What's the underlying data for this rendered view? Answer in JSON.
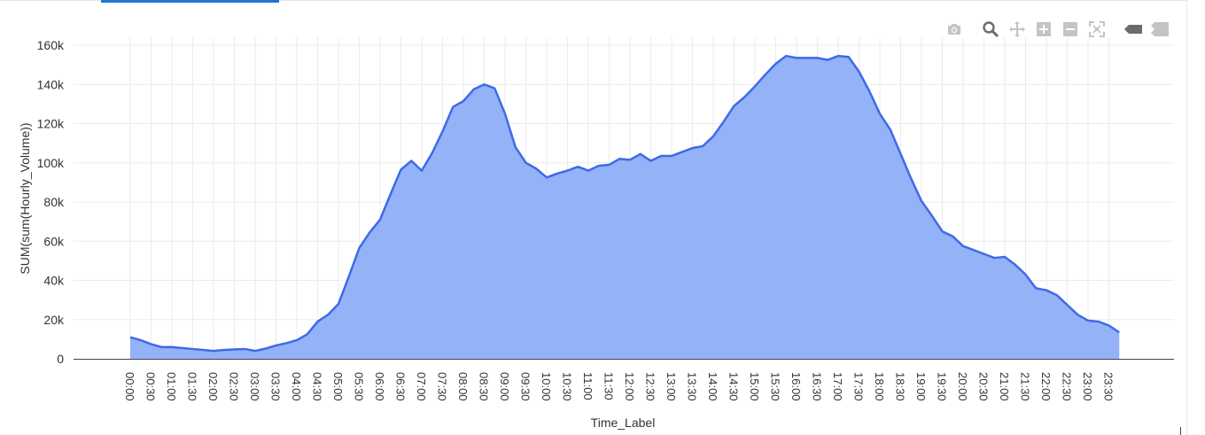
{
  "toolbar": {
    "icons": [
      "camera-icon",
      "zoom-icon",
      "pan-icon",
      "zoom-in-icon",
      "zoom-out-icon",
      "autoscale-icon",
      "hover-closest-icon",
      "hover-compare-icon"
    ]
  },
  "colors": {
    "fill": "#94b2f8",
    "line": "#3f6ae8",
    "grid": "#ebebeb",
    "axis": "#444444",
    "text": "#333333",
    "icon": "#c4c4c4",
    "icon_dark": "#6b6b6b",
    "tab_accent": "#1f77d0"
  },
  "chart_data": {
    "type": "area",
    "xlabel": "Time_Label",
    "ylabel": "SUM(sum(Hourly_Volume))",
    "ylim": [
      0,
      162000
    ],
    "yticks": [
      0,
      20000,
      40000,
      60000,
      80000,
      100000,
      120000,
      140000,
      160000
    ],
    "ytick_labels": [
      "0",
      "20k",
      "40k",
      "60k",
      "80k",
      "100k",
      "120k",
      "140k",
      "160k"
    ],
    "x_tick_labels": [
      "00:00",
      "00:30",
      "01:00",
      "01:30",
      "02:00",
      "02:30",
      "03:00",
      "03:30",
      "04:00",
      "04:30",
      "05:00",
      "05:30",
      "06:00",
      "06:30",
      "07:00",
      "07:30",
      "08:00",
      "08:30",
      "09:00",
      "09:30",
      "10:00",
      "10:30",
      "11:00",
      "11:30",
      "12:00",
      "12:30",
      "13:00",
      "13:30",
      "14:00",
      "14:30",
      "15:00",
      "15:30",
      "16:00",
      "16:30",
      "17:00",
      "17:30",
      "18:00",
      "18:30",
      "19:00",
      "19:30",
      "20:00",
      "20:30",
      "21:00",
      "21:30",
      "22:00",
      "22:30",
      "23:00",
      "23:30"
    ],
    "x": [
      "00:00",
      "00:15",
      "00:30",
      "00:45",
      "01:00",
      "01:15",
      "01:30",
      "01:45",
      "02:00",
      "02:15",
      "02:30",
      "02:45",
      "03:00",
      "03:15",
      "03:30",
      "03:45",
      "04:00",
      "04:15",
      "04:30",
      "04:45",
      "05:00",
      "05:15",
      "05:30",
      "05:45",
      "06:00",
      "06:15",
      "06:30",
      "06:45",
      "07:00",
      "07:15",
      "07:30",
      "07:45",
      "08:00",
      "08:15",
      "08:30",
      "08:45",
      "09:00",
      "09:15",
      "09:30",
      "09:45",
      "10:00",
      "10:15",
      "10:30",
      "10:45",
      "11:00",
      "11:15",
      "11:30",
      "11:45",
      "12:00",
      "12:15",
      "12:30",
      "12:45",
      "13:00",
      "13:15",
      "13:30",
      "13:45",
      "14:00",
      "14:15",
      "14:30",
      "14:45",
      "15:00",
      "15:15",
      "15:30",
      "15:45",
      "16:00",
      "16:15",
      "16:30",
      "16:45",
      "17:00",
      "17:15",
      "17:30",
      "17:45",
      "18:00",
      "18:15",
      "18:30",
      "18:45",
      "19:00",
      "19:15",
      "19:30",
      "19:45",
      "20:00",
      "20:15",
      "20:30",
      "20:45",
      "21:00",
      "21:15",
      "21:30",
      "21:45",
      "22:00",
      "22:15",
      "22:30",
      "22:45",
      "23:00",
      "23:15",
      "23:30",
      "23:45"
    ],
    "values": [
      11000,
      9500,
      7500,
      6000,
      6000,
      5500,
      5000,
      4500,
      4000,
      4500,
      4800,
      5000,
      4000,
      5200,
      6800,
      8000,
      9500,
      12500,
      19000,
      22500,
      28000,
      42000,
      56500,
      64500,
      71000,
      84000,
      96500,
      101000,
      96000,
      105000,
      116000,
      128500,
      131500,
      137500,
      140000,
      138000,
      125000,
      108000,
      100000,
      97000,
      92500,
      94500,
      96000,
      98000,
      96000,
      98500,
      99000,
      102000,
      101500,
      104500,
      101000,
      103500,
      103500,
      105500,
      107500,
      108500,
      113500,
      121000,
      129000,
      133500,
      139000,
      145000,
      150500,
      154500,
      153500,
      153500,
      153500,
      152500,
      154500,
      154000,
      146500,
      136500,
      125000,
      117000,
      104500,
      92000,
      80500,
      73000,
      65000,
      62500,
      57500,
      55500,
      53500,
      51500,
      52000,
      48000,
      43000,
      36000,
      35000,
      32500,
      27500,
      22500,
      19500,
      19000,
      17000,
      13500
    ],
    "grid": true
  }
}
